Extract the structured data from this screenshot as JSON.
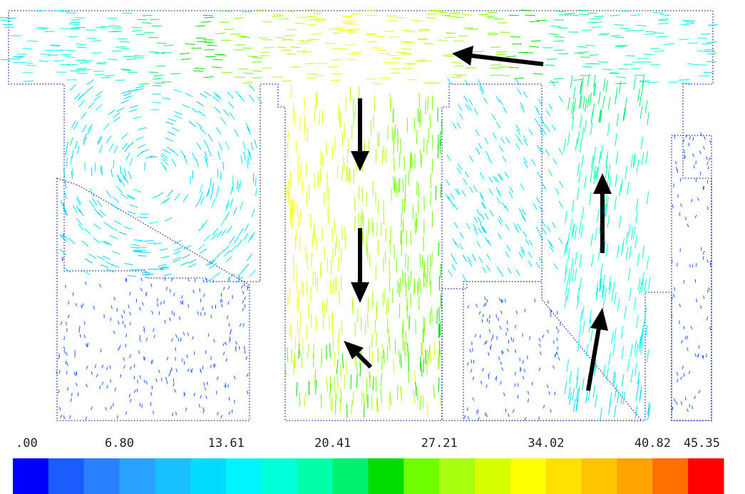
{
  "colorbar": {
    "range": [
      0,
      45.35
    ],
    "ticks": [
      {
        "value": 0,
        "label": ".00"
      },
      {
        "value": 6.8,
        "label": "6.80"
      },
      13.61,
      20.41,
      27.21,
      34.02,
      40.82,
      45.35
    ],
    "colors": [
      "#0000ff",
      "#1a5cff",
      "#2a80ff",
      "#2aa0ff",
      "#18c0ff",
      "#00dcff",
      "#00f4ff",
      "#00ffd8",
      "#00ffa8",
      "#00f070",
      "#00dd00",
      "#70ff00",
      "#a8ff10",
      "#d8ff00",
      "#ffff00",
      "#ffe000",
      "#ffc400",
      "#ffa400",
      "#ff7000",
      "#ff0000"
    ]
  }
}
